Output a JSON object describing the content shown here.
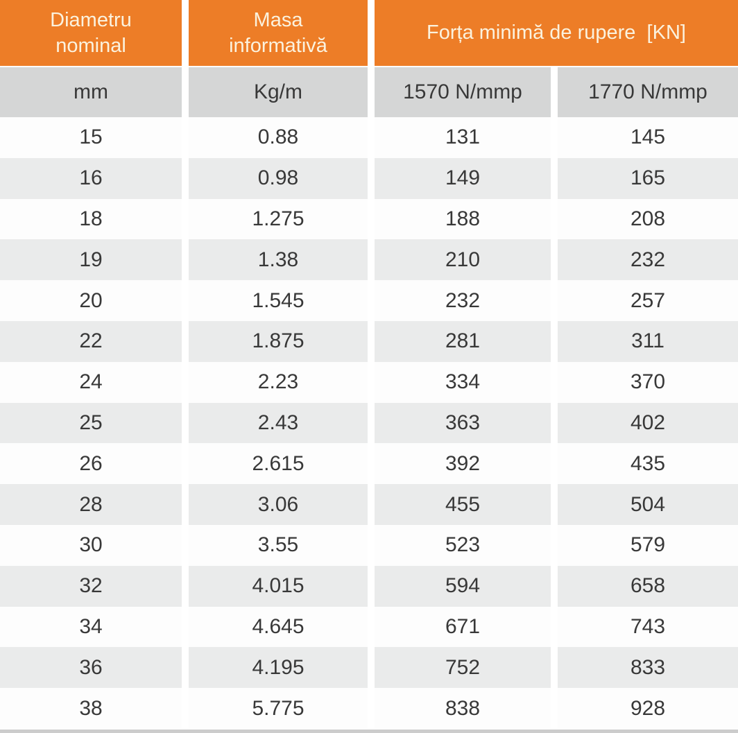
{
  "chart_data": {
    "type": "table",
    "title": "",
    "header_groups": [
      {
        "label": "Diametru\nnominal",
        "span": 1
      },
      {
        "label": "Masa\ninformativă",
        "span": 1
      },
      {
        "label": "Forța minimă de rupere  [KN]",
        "span": 2
      }
    ],
    "columns": [
      "mm",
      "Kg/m",
      "1570 N/mmp",
      "1770 N/mmp"
    ],
    "rows": [
      [
        "15",
        "0.88",
        "131",
        "145"
      ],
      [
        "16",
        "0.98",
        "149",
        "165"
      ],
      [
        "18",
        "1.275",
        "188",
        "208"
      ],
      [
        "19",
        "1.38",
        "210",
        "232"
      ],
      [
        "20",
        "1.545",
        "232",
        "257"
      ],
      [
        "22",
        "1.875",
        "281",
        "311"
      ],
      [
        "24",
        "2.23",
        "334",
        "370"
      ],
      [
        "25",
        "2.43",
        "363",
        "402"
      ],
      [
        "26",
        "2.615",
        "392",
        "435"
      ],
      [
        "28",
        "3.06",
        "455",
        "504"
      ],
      [
        "30",
        "3.55",
        "523",
        "579"
      ],
      [
        "32",
        "4.015",
        "594",
        "658"
      ],
      [
        "34",
        "4.645",
        "671",
        "743"
      ],
      [
        "36",
        "4.195",
        "752",
        "833"
      ],
      [
        "38",
        "5.775",
        "838",
        "928"
      ]
    ],
    "layout": {
      "striped_rows": true,
      "stripe_pattern": "odd-rows-gray"
    }
  },
  "colors": {
    "header_bg": "#ed7d27",
    "header_text": "#fbf2de",
    "subheader_bg": "#d5d6d6",
    "stripe_bg": "#eaebeb",
    "white_row_bg": "#fdfdfd",
    "body_text": "#383838",
    "bottom_bar": "#cccccc"
  }
}
